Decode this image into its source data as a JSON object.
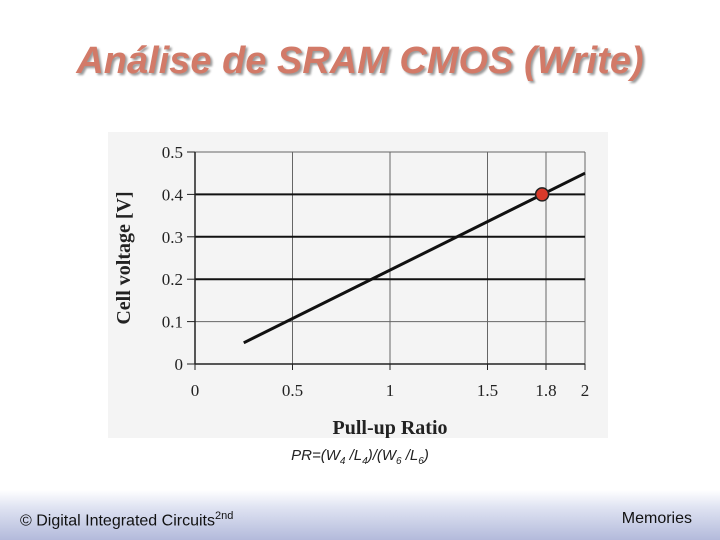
{
  "slide": {
    "title": "Análise de SRAM CMOS (Write)"
  },
  "formula": {
    "prefix": "PR=(W",
    "sub1": "4",
    "mid1": " /L",
    "sub2": "4",
    "mid2": ")/(W",
    "sub3": "6",
    "mid3": " /L",
    "sub4": "6",
    "suffix": ")"
  },
  "footer": {
    "left": "© Digital Integrated Circuits",
    "left_sup": "2nd",
    "right": "Memories"
  },
  "chart_data": {
    "type": "line",
    "xlabel": "Pull-up Ratio",
    "ylabel": "Cell voltage [V]",
    "xlim": [
      0,
      2
    ],
    "ylim": [
      0,
      0.5
    ],
    "x_ticks": [
      0,
      0.5,
      1,
      1.5,
      1.8,
      2
    ],
    "x_tick_labels": [
      "0",
      "0.5",
      "1",
      "1.5",
      "1.8",
      "2"
    ],
    "y_ticks": [
      0,
      0.1,
      0.2,
      0.3,
      0.4,
      0.5
    ],
    "y_tick_labels": [
      "0",
      "0.1",
      "0.2",
      "0.3",
      "0.4",
      "0.5"
    ],
    "grid": true,
    "series": [
      {
        "x": [
          0.25,
          2.0
        ],
        "y": [
          0.05,
          0.45
        ]
      }
    ],
    "highlight_point": {
      "x": 1.78,
      "y": 0.4,
      "color": "#d83a2a"
    },
    "emphasized_gridlines_y": [
      0.2,
      0.3,
      0.4
    ]
  }
}
